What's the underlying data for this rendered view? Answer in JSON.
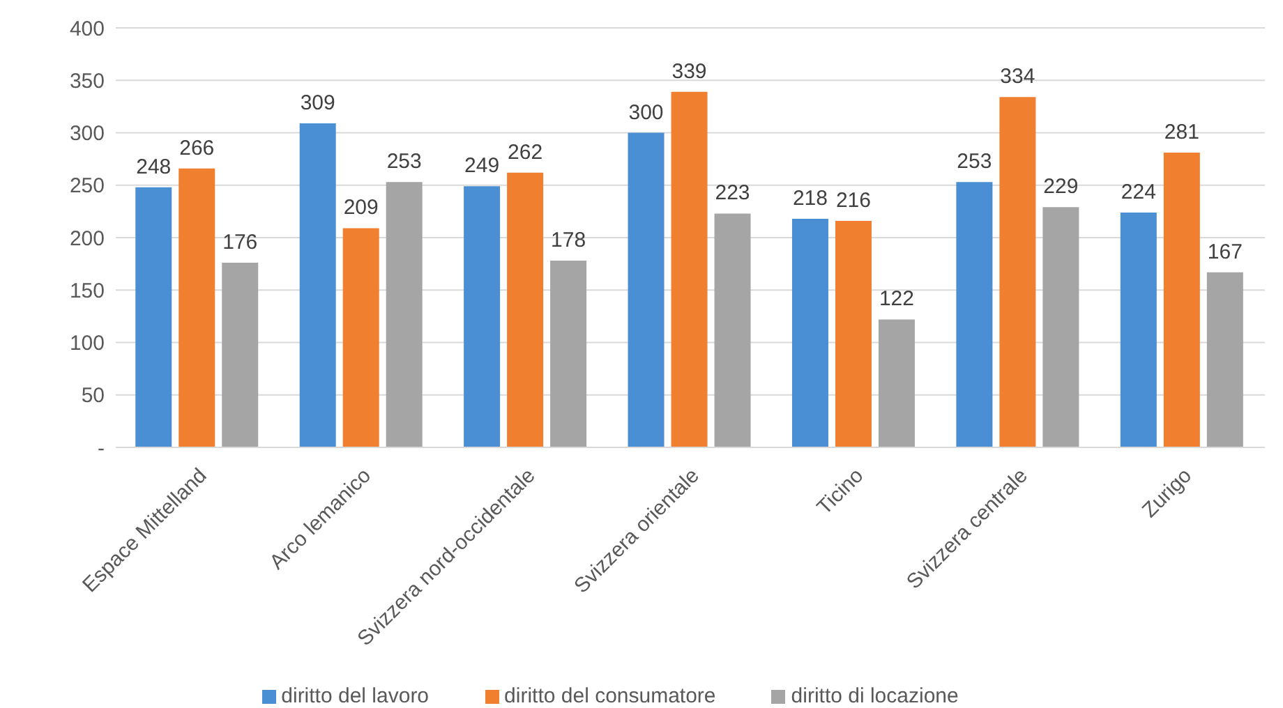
{
  "chart_data": {
    "type": "bar",
    "categories": [
      "Espace Mittelland",
      "Arco lemanico",
      "Svizzera nord-occidentale",
      "Svizzera orientale",
      "Ticino",
      "Svizzera centrale",
      "Zurigo"
    ],
    "series": [
      {
        "name": "diritto del lavoro",
        "color": "#4a8fd4",
        "values": [
          248,
          309,
          249,
          300,
          218,
          253,
          224
        ]
      },
      {
        "name": "diritto del consumatore",
        "color": "#f07f2f",
        "values": [
          266,
          209,
          262,
          339,
          216,
          334,
          281
        ]
      },
      {
        "name": "diritto di locazione",
        "color": "#a5a5a5",
        "values": [
          176,
          253,
          178,
          223,
          122,
          229,
          167
        ]
      }
    ],
    "ylim": [
      0,
      400
    ],
    "yticks": [
      {
        "value": 0,
        "label": "-"
      },
      50,
      100,
      150,
      200,
      250,
      300,
      350,
      400
    ],
    "grid": "y",
    "legend": "bottom",
    "data_labels": true
  }
}
